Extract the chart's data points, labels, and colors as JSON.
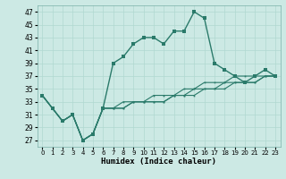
{
  "xlabel": "Humidex (Indice chaleur)",
  "background_color": "#cce9e4",
  "line_color": "#2a7a6a",
  "grid_color": "#b0d8d0",
  "x": [
    0,
    1,
    2,
    3,
    4,
    5,
    6,
    7,
    8,
    9,
    10,
    11,
    12,
    13,
    14,
    15,
    16,
    17,
    18,
    19,
    20,
    21,
    22,
    23
  ],
  "line_main": [
    34,
    32,
    30,
    31,
    27,
    28,
    32,
    39,
    40,
    42,
    43,
    43,
    42,
    44,
    44,
    47,
    46,
    39,
    38,
    37,
    36,
    37,
    38,
    37
  ],
  "line2": [
    34,
    32,
    30,
    31,
    27,
    28,
    32,
    32,
    32,
    33,
    33,
    33,
    33,
    34,
    34,
    34,
    35,
    35,
    35,
    36,
    36,
    36,
    37,
    37
  ],
  "line3": [
    34,
    32,
    30,
    31,
    27,
    28,
    32,
    32,
    32,
    33,
    33,
    33,
    33,
    34,
    34,
    35,
    35,
    35,
    36,
    36,
    36,
    36,
    37,
    37
  ],
  "line4": [
    34,
    32,
    30,
    31,
    27,
    28,
    32,
    32,
    33,
    33,
    33,
    34,
    34,
    34,
    35,
    35,
    36,
    36,
    36,
    37,
    37,
    37,
    37,
    37
  ],
  "ylim": [
    26,
    48
  ],
  "xlim": [
    -0.5,
    23.5
  ],
  "yticks": [
    27,
    29,
    31,
    33,
    35,
    37,
    39,
    41,
    43,
    45,
    47
  ],
  "xticks": [
    0,
    1,
    2,
    3,
    4,
    5,
    6,
    7,
    8,
    9,
    10,
    11,
    12,
    13,
    14,
    15,
    16,
    17,
    18,
    19,
    20,
    21,
    22,
    23
  ]
}
